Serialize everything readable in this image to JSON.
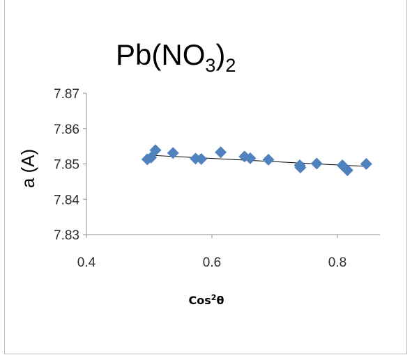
{
  "chart_data": {
    "type": "scatter",
    "title": "Pb(NO3)2",
    "title_parts": {
      "base": "Pb(NO",
      "sub1": "3",
      "mid": ")",
      "sub2": "2"
    },
    "xlabel": "Cos²θ",
    "xlabel_parts": {
      "base": "Cos",
      "sup": "2",
      "tail": "θ"
    },
    "ylabel": "a (A)",
    "xlim": [
      0.4,
      0.85
    ],
    "ylim": [
      7.83,
      7.87
    ],
    "x_ticks": [
      "0.4",
      "0.6",
      "0.8"
    ],
    "y_ticks": [
      "7.83",
      "7.84",
      "7.85",
      "7.86",
      "7.87"
    ],
    "grid": false,
    "legend": "none",
    "marker_color": "#4f81bd",
    "trendline_color": "#000000",
    "series": [
      {
        "x": [
          0.497,
          0.503,
          0.51,
          0.538,
          0.574,
          0.583,
          0.614,
          0.652,
          0.661,
          0.69,
          0.74,
          0.741,
          0.767,
          0.808,
          0.816,
          0.846
        ],
        "y": [
          7.8513,
          7.8518,
          7.8539,
          7.8531,
          7.8515,
          7.8514,
          7.8533,
          7.8521,
          7.8516,
          7.8512,
          7.8496,
          7.849,
          7.8501,
          7.8496,
          7.8482,
          7.85
        ]
      }
    ],
    "trendline": {
      "x": [
        0.497,
        0.846
      ],
      "y": [
        7.8525,
        7.8493
      ]
    }
  }
}
